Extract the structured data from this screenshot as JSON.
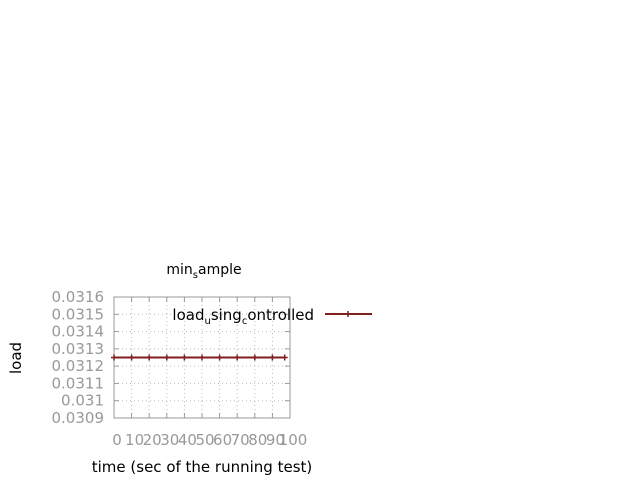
{
  "chart_data": {
    "type": "line",
    "title": "min_sample",
    "title_main": "min",
    "title_sub": "s",
    "title_rest": "ample",
    "xlabel": "time (sec of the running test)",
    "ylabel": "load",
    "xlim": [
      0,
      100
    ],
    "ylim": [
      0.0309,
      0.0316
    ],
    "x_ticks": [
      0,
      10,
      20,
      30,
      40,
      50,
      60,
      70,
      80,
      90,
      100
    ],
    "x_tick_labels": [
      "0",
      "10",
      "20",
      "30",
      "40",
      "50",
      "60",
      "70",
      "80",
      "90",
      "100"
    ],
    "y_ticks": [
      0.0309,
      0.031,
      0.0311,
      0.0312,
      0.0313,
      0.0314,
      0.0315,
      0.0316
    ],
    "y_tick_labels": [
      "0.0309",
      "0.031",
      "0.0311",
      "0.0312",
      "0.0313",
      "0.0314",
      "0.0315",
      "0.0316"
    ],
    "grid": true,
    "legend_position": "top-right",
    "series": [
      {
        "name": "load_using_controlled",
        "legend_parts": {
          "a": "load",
          "sub1": "u",
          "b": "sing",
          "sub2": "c",
          "c": "ontrolled"
        },
        "color": "#7f1f1f",
        "x": [
          0,
          10,
          20,
          30,
          40,
          50,
          60,
          70,
          80,
          90,
          97
        ],
        "y": [
          0.03125,
          0.03125,
          0.03125,
          0.03125,
          0.03125,
          0.03125,
          0.03125,
          0.03125,
          0.03125,
          0.03125,
          0.03125
        ]
      }
    ]
  }
}
